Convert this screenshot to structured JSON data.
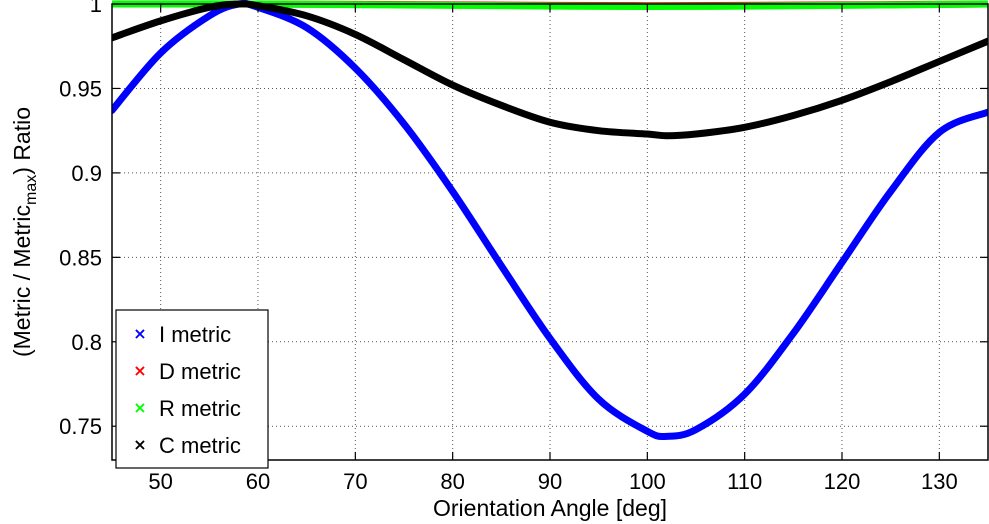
{
  "chart_data": {
    "type": "line",
    "xlabel": "Orientation Angle [deg]",
    "ylabel": {
      "pre": "(Metric / Metric",
      "sub": "max",
      "post": ") Ratio"
    },
    "xlim": [
      45,
      135
    ],
    "ylim": [
      0.73,
      1.0
    ],
    "x_ticks": [
      50,
      60,
      70,
      80,
      90,
      100,
      110,
      120,
      130
    ],
    "y_ticks": [
      0.75,
      0.8,
      0.85,
      0.9,
      0.95,
      1
    ],
    "y_tick_labels": [
      "0.75",
      "0.8",
      "0.85",
      "0.9",
      "0.95",
      "1"
    ],
    "grid": true,
    "legend_position": "bottom-left",
    "legend_marker": "×",
    "series": [
      {
        "name": "I metric",
        "color": "#0000ff",
        "x": [
          45,
          50,
          55,
          58,
          60,
          65,
          70,
          75,
          80,
          85,
          90,
          95,
          100,
          102,
          105,
          110,
          115,
          120,
          125,
          130,
          135
        ],
        "y": [
          0.937,
          0.971,
          0.993,
          1.0,
          0.998,
          0.986,
          0.962,
          0.929,
          0.889,
          0.845,
          0.802,
          0.766,
          0.747,
          0.744,
          0.748,
          0.769,
          0.805,
          0.847,
          0.889,
          0.924,
          0.936
        ]
      },
      {
        "name": "D metric",
        "color": "#ff0000",
        "x": [
          45,
          60,
          80,
          100,
          120,
          135
        ],
        "y": [
          1.0,
          1.0,
          0.9995,
          0.999,
          0.9995,
          1.0
        ]
      },
      {
        "name": "R metric",
        "color": "#00ff00",
        "x": [
          45,
          60,
          80,
          100,
          120,
          135
        ],
        "y": [
          1.0,
          1.0,
          0.9992,
          0.9985,
          0.9992,
          1.0
        ]
      },
      {
        "name": "C metric",
        "color": "#000000",
        "x": [
          45,
          50,
          55,
          58,
          60,
          65,
          70,
          75,
          80,
          85,
          90,
          95,
          100,
          102,
          105,
          110,
          115,
          120,
          125,
          130,
          135
        ],
        "y": [
          0.98,
          0.99,
          0.998,
          1.0,
          0.999,
          0.993,
          0.982,
          0.967,
          0.952,
          0.94,
          0.93,
          0.925,
          0.923,
          0.922,
          0.923,
          0.927,
          0.934,
          0.943,
          0.954,
          0.966,
          0.978
        ]
      }
    ]
  }
}
